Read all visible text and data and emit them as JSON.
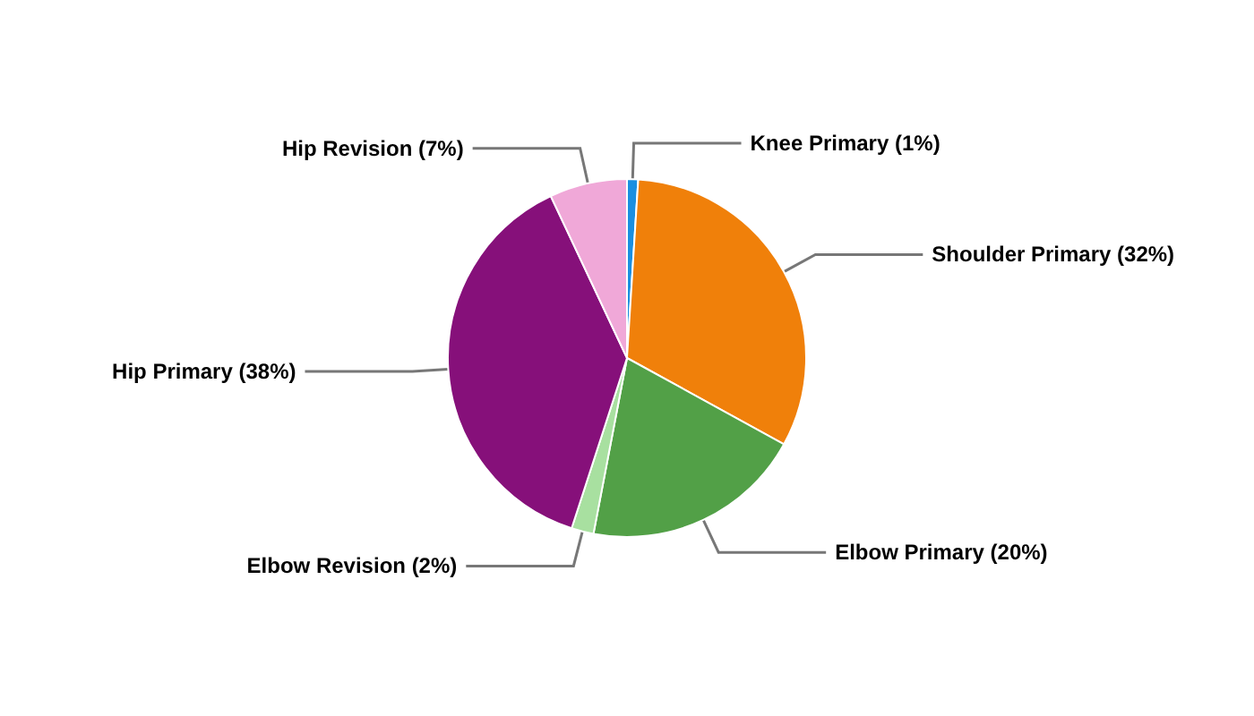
{
  "chart_data": {
    "type": "pie",
    "categories": [
      "Knee Primary (1%)",
      "Shoulder Primary (32%)",
      "Elbow Primary (20%)",
      "Elbow Revision (2%)",
      "Hip Primary (38%)",
      "Hip Revision (7%)"
    ],
    "values": [
      1,
      32,
      20,
      2,
      38,
      7
    ],
    "colors": [
      "#1a8fe0",
      "#f0800a",
      "#52a047",
      "#a8e0a0",
      "#86107a",
      "#f0a8d8"
    ],
    "legend": false
  }
}
